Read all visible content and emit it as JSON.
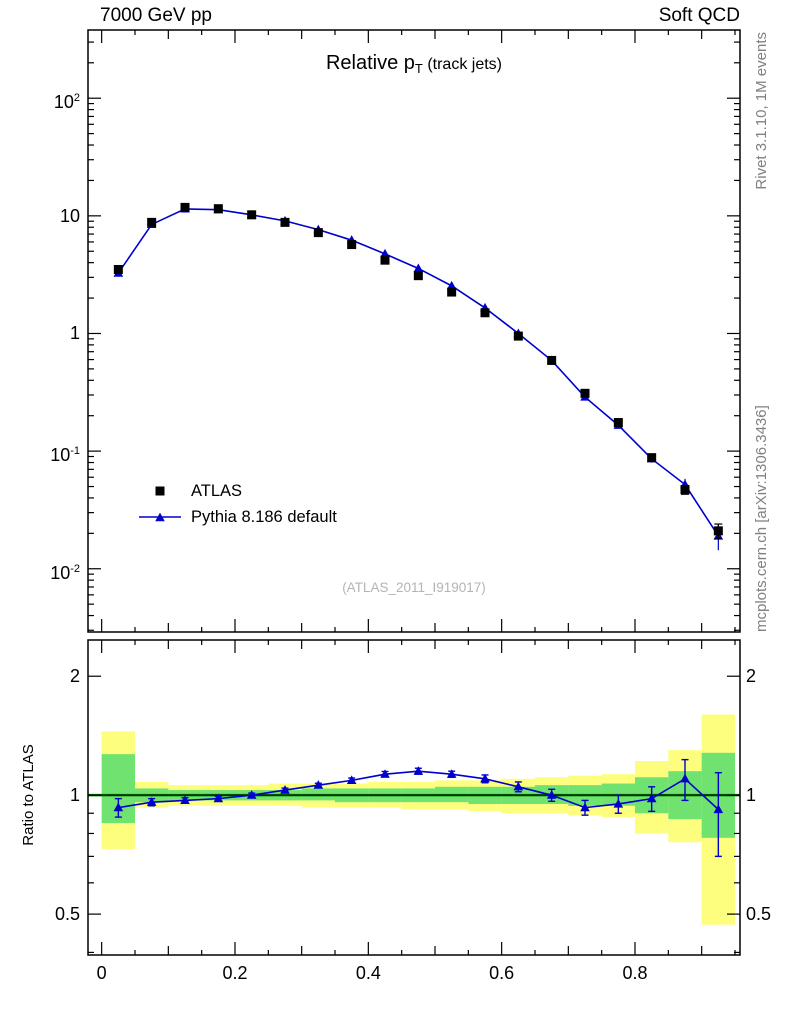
{
  "header": {
    "left": "7000 GeV pp",
    "right": "Soft QCD"
  },
  "title": {
    "prefix": "Relative p",
    "sub": "T",
    "suffix": " (track jets)"
  },
  "watermark": "(ATLAS_2011_I919017)",
  "side_notes": {
    "top": "Rivet 3.1.10, 1M events",
    "bottom": "mcplots.cern.ch [arXiv:1306.3436]"
  },
  "ratio_axis_label": "Ratio to ATLAS",
  "legend": {
    "items": [
      {
        "label": "ATLAS",
        "marker": "square",
        "color": "#000000"
      },
      {
        "label": "Pythia 8.186 default",
        "marker": "triangle",
        "color": "#0000cc",
        "line": true
      }
    ]
  },
  "colors": {
    "data": "#000000",
    "mc": "#0000cc",
    "band_outer": "#fdfd7e",
    "band_inner": "#6fe26f",
    "ref_line": "#008000",
    "frame": "#000000",
    "note_gray": "#808080",
    "watermark_gray": "#b4b4b4"
  },
  "chart_data": {
    "type": "line",
    "title": "Relative pT (track jets)",
    "xlabel": "",
    "ylabel": "",
    "x": [
      0.025,
      0.075,
      0.125,
      0.175,
      0.225,
      0.275,
      0.325,
      0.375,
      0.425,
      0.475,
      0.525,
      0.575,
      0.625,
      0.675,
      0.725,
      0.775,
      0.825,
      0.875,
      0.925
    ],
    "series": [
      {
        "name": "ATLAS",
        "marker": "square",
        "color": "#000000",
        "values": [
          3.5,
          8.8,
          11.8,
          11.5,
          10.2,
          8.8,
          7.2,
          5.7,
          4.2,
          3.1,
          2.25,
          1.5,
          0.95,
          0.59,
          0.31,
          0.175,
          0.088,
          0.047,
          0.021
        ],
        "errors": [
          0.12,
          0.25,
          0.3,
          0.28,
          0.25,
          0.22,
          0.18,
          0.15,
          0.12,
          0.09,
          0.07,
          0.05,
          0.03,
          0.02,
          0.012,
          0.008,
          0.005,
          0.004,
          0.003
        ]
      },
      {
        "name": "Pythia 8.186 default",
        "marker": "triangle",
        "color": "#0000cc",
        "values": [
          3.26,
          8.45,
          11.45,
          11.27,
          10.2,
          9.06,
          7.63,
          6.21,
          4.75,
          3.57,
          2.54,
          1.65,
          1.0,
          0.59,
          0.288,
          0.166,
          0.086,
          0.052,
          0.019
        ]
      }
    ],
    "main_axis": {
      "xlim": [
        -0.0205,
        0.9575
      ],
      "ylog": true,
      "ylim": [
        0.0029,
        380
      ],
      "yticks": [
        {
          "v": 100,
          "t": "10",
          "e": "2"
        },
        {
          "v": 10,
          "t": "10"
        },
        {
          "v": 1,
          "t": "1"
        },
        {
          "v": 0.1,
          "t": "10",
          "e": "-1"
        },
        {
          "v": 0.01,
          "t": "10",
          "e": "-2"
        }
      ],
      "xticks": [
        {
          "v": 0,
          "t": "0"
        },
        {
          "v": 0.2,
          "t": "0.2"
        },
        {
          "v": 0.4,
          "t": "0.4"
        },
        {
          "v": 0.6,
          "t": "0.6"
        },
        {
          "v": 0.8,
          "t": "0.8"
        }
      ]
    },
    "ratio_panel": {
      "label": "Ratio to ATLAS",
      "ylog": true,
      "ylim": [
        0.394,
        2.47
      ],
      "yticks": [
        {
          "v": 2,
          "t": "2"
        },
        {
          "v": 1,
          "t": "1"
        },
        {
          "v": 0.5,
          "t": "0.5"
        }
      ],
      "minor_ticks": [
        0.4,
        0.6,
        0.7,
        0.8,
        0.9
      ],
      "values": [
        0.93,
        0.96,
        0.97,
        0.98,
        1.0,
        1.03,
        1.06,
        1.09,
        1.13,
        1.15,
        1.13,
        1.1,
        1.05,
        1.0,
        0.93,
        0.95,
        0.98,
        1.1,
        0.92
      ],
      "errors": [
        0.05,
        0.02,
        0.015,
        0.012,
        0.012,
        0.012,
        0.012,
        0.015,
        0.018,
        0.02,
        0.02,
        0.025,
        0.03,
        0.035,
        0.04,
        0.05,
        0.07,
        0.13,
        0.22
      ],
      "bands": [
        {
          "x0": 0.0,
          "x1": 0.05,
          "outer": [
            0.73,
            1.45
          ],
          "inner": [
            0.85,
            1.27
          ]
        },
        {
          "x0": 0.05,
          "x1": 0.1,
          "outer": [
            0.93,
            1.08
          ],
          "inner": [
            0.96,
            1.04
          ]
        },
        {
          "x0": 0.1,
          "x1": 0.15,
          "outer": [
            0.94,
            1.06
          ],
          "inner": [
            0.97,
            1.03
          ]
        },
        {
          "x0": 0.15,
          "x1": 0.2,
          "outer": [
            0.94,
            1.06
          ],
          "inner": [
            0.97,
            1.03
          ]
        },
        {
          "x0": 0.2,
          "x1": 0.25,
          "outer": [
            0.94,
            1.06
          ],
          "inner": [
            0.97,
            1.03
          ]
        },
        {
          "x0": 0.25,
          "x1": 0.3,
          "outer": [
            0.94,
            1.07
          ],
          "inner": [
            0.97,
            1.03
          ]
        },
        {
          "x0": 0.3,
          "x1": 0.35,
          "outer": [
            0.93,
            1.07
          ],
          "inner": [
            0.97,
            1.04
          ]
        },
        {
          "x0": 0.35,
          "x1": 0.4,
          "outer": [
            0.93,
            1.07
          ],
          "inner": [
            0.96,
            1.04
          ]
        },
        {
          "x0": 0.4,
          "x1": 0.45,
          "outer": [
            0.93,
            1.08
          ],
          "inner": [
            0.96,
            1.04
          ]
        },
        {
          "x0": 0.45,
          "x1": 0.5,
          "outer": [
            0.92,
            1.08
          ],
          "inner": [
            0.96,
            1.04
          ]
        },
        {
          "x0": 0.5,
          "x1": 0.55,
          "outer": [
            0.92,
            1.09
          ],
          "inner": [
            0.96,
            1.05
          ]
        },
        {
          "x0": 0.55,
          "x1": 0.6,
          "outer": [
            0.91,
            1.09
          ],
          "inner": [
            0.95,
            1.05
          ]
        },
        {
          "x0": 0.6,
          "x1": 0.65,
          "outer": [
            0.9,
            1.1
          ],
          "inner": [
            0.95,
            1.05
          ]
        },
        {
          "x0": 0.65,
          "x1": 0.7,
          "outer": [
            0.9,
            1.11
          ],
          "inner": [
            0.95,
            1.06
          ]
        },
        {
          "x0": 0.7,
          "x1": 0.75,
          "outer": [
            0.89,
            1.12
          ],
          "inner": [
            0.94,
            1.06
          ]
        },
        {
          "x0": 0.75,
          "x1": 0.8,
          "outer": [
            0.88,
            1.13
          ],
          "inner": [
            0.94,
            1.07
          ]
        },
        {
          "x0": 0.8,
          "x1": 0.85,
          "outer": [
            0.8,
            1.22
          ],
          "inner": [
            0.9,
            1.11
          ]
        },
        {
          "x0": 0.85,
          "x1": 0.9,
          "outer": [
            0.76,
            1.3
          ],
          "inner": [
            0.87,
            1.15
          ]
        },
        {
          "x0": 0.9,
          "x1": 0.95,
          "outer": [
            0.47,
            1.6
          ],
          "inner": [
            0.78,
            1.28
          ]
        }
      ]
    }
  }
}
